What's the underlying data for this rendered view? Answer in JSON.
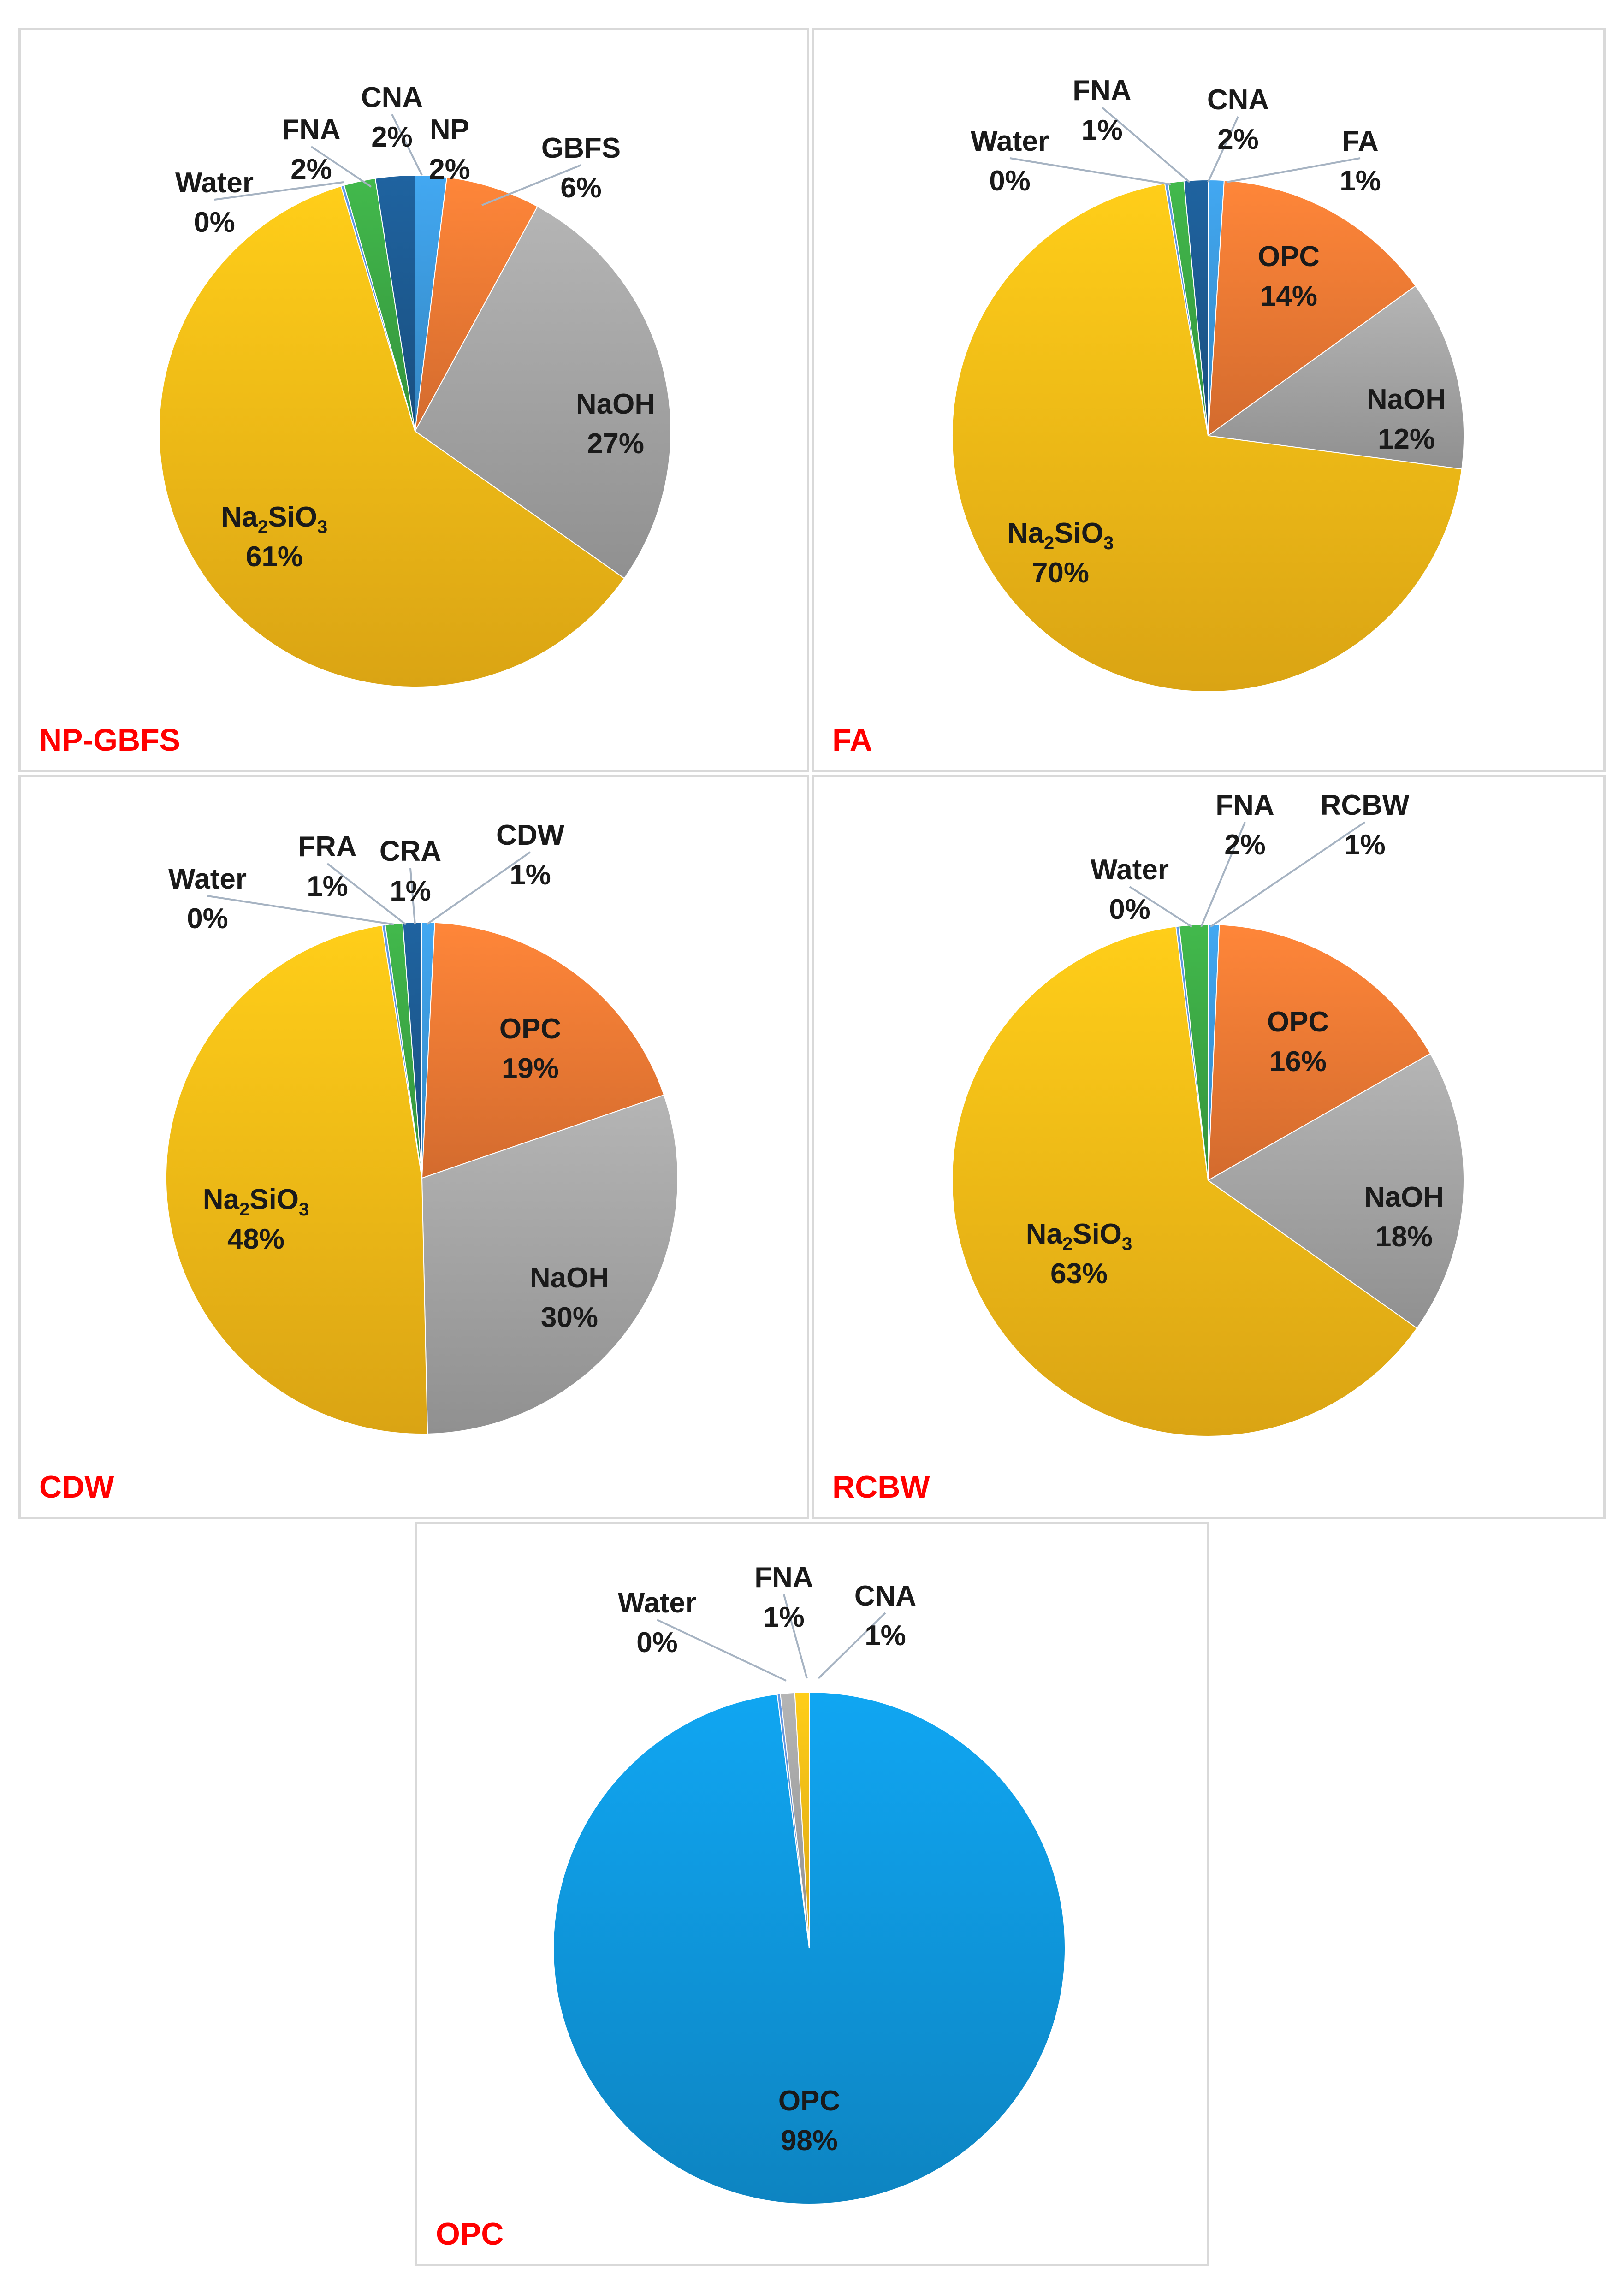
{
  "chart_data": [
    {
      "type": "pie",
      "title": "NP-GBFS",
      "slices": [
        {
          "label": "NP",
          "value": 2,
          "pct": "2%",
          "color": "#3d9ce0"
        },
        {
          "label": "GBFS",
          "value": 6,
          "pct": "6%",
          "color": "#f57c35"
        },
        {
          "label": "NaOH",
          "value": 27,
          "pct": "27%",
          "color": "#a8a8a8"
        },
        {
          "label": "Na2SiO3",
          "value": 61,
          "pct": "61%",
          "color": "#fdbf17",
          "sub": true
        },
        {
          "label": "Water",
          "value": 0.2,
          "pct": "0%",
          "color": "#5b8fd6"
        },
        {
          "label": "FNA",
          "value": 2,
          "pct": "2%",
          "color": "#3dab46"
        },
        {
          "label": "CNA",
          "value": 2.5,
          "pct": "2%",
          "color": "#1d5c94"
        }
      ]
    },
    {
      "type": "pie",
      "title": "FA",
      "slices": [
        {
          "label": "FA",
          "value": 1,
          "pct": "1%",
          "color": "#3d9ce0"
        },
        {
          "label": "OPC",
          "value": 14,
          "pct": "14%",
          "color": "#f57c35"
        },
        {
          "label": "NaOH",
          "value": 12,
          "pct": "12%",
          "color": "#a8a8a8"
        },
        {
          "label": "Na2SiO3",
          "value": 70,
          "pct": "70%",
          "color": "#fdbf17",
          "sub": true
        },
        {
          "label": "Water",
          "value": 0.2,
          "pct": "0%",
          "color": "#5b8fd6"
        },
        {
          "label": "FNA",
          "value": 1,
          "pct": "1%",
          "color": "#3dab46"
        },
        {
          "label": "CNA",
          "value": 1.5,
          "pct": "2%",
          "color": "#1d5c94"
        }
      ]
    },
    {
      "type": "pie",
      "title": "CDW",
      "slices": [
        {
          "label": "CDW",
          "value": 0.8,
          "pct": "1%",
          "color": "#3d9ce0"
        },
        {
          "label": "OPC",
          "value": 19,
          "pct": "19%",
          "color": "#f57c35"
        },
        {
          "label": "NaOH",
          "value": 30,
          "pct": "30%",
          "color": "#a8a8a8"
        },
        {
          "label": "Na2SiO3",
          "value": 48,
          "pct": "48%",
          "color": "#fdbf17",
          "sub": true
        },
        {
          "label": "Water",
          "value": 0.2,
          "pct": "0%",
          "color": "#5b8fd6"
        },
        {
          "label": "FRA",
          "value": 1.1,
          "pct": "1%",
          "color": "#3dab46"
        },
        {
          "label": "CRA",
          "value": 1.2,
          "pct": "1%",
          "color": "#1d5c94"
        }
      ]
    },
    {
      "type": "pie",
      "title": "RCBW",
      "slices": [
        {
          "label": "RCBW",
          "value": 0.7,
          "pct": "1%",
          "color": "#3d9ce0"
        },
        {
          "label": "OPC",
          "value": 16,
          "pct": "16%",
          "color": "#f57c35"
        },
        {
          "label": "NaOH",
          "value": 18,
          "pct": "18%",
          "color": "#a8a8a8"
        },
        {
          "label": "Na2SiO3",
          "value": 63,
          "pct": "63%",
          "color": "#fdbf17",
          "sub": true
        },
        {
          "label": "Water",
          "value": 0.2,
          "pct": "0%",
          "color": "#5b8fd6"
        },
        {
          "label": "FNA",
          "value": 1.8,
          "pct": "2%",
          "color": "#3dab46"
        }
      ]
    },
    {
      "type": "pie",
      "title": "OPC",
      "slices": [
        {
          "label": "OPC",
          "value": 98,
          "pct": "98%",
          "color": "#0f9ae0"
        },
        {
          "label": "Water",
          "value": 0.2,
          "pct": "0%",
          "color": "#5b8fd6"
        },
        {
          "label": "FNA",
          "value": 0.9,
          "pct": "1%",
          "color": "#a8a8a8"
        },
        {
          "label": "CNA",
          "value": 0.9,
          "pct": "1%",
          "color": "#fdbf17"
        }
      ]
    }
  ]
}
